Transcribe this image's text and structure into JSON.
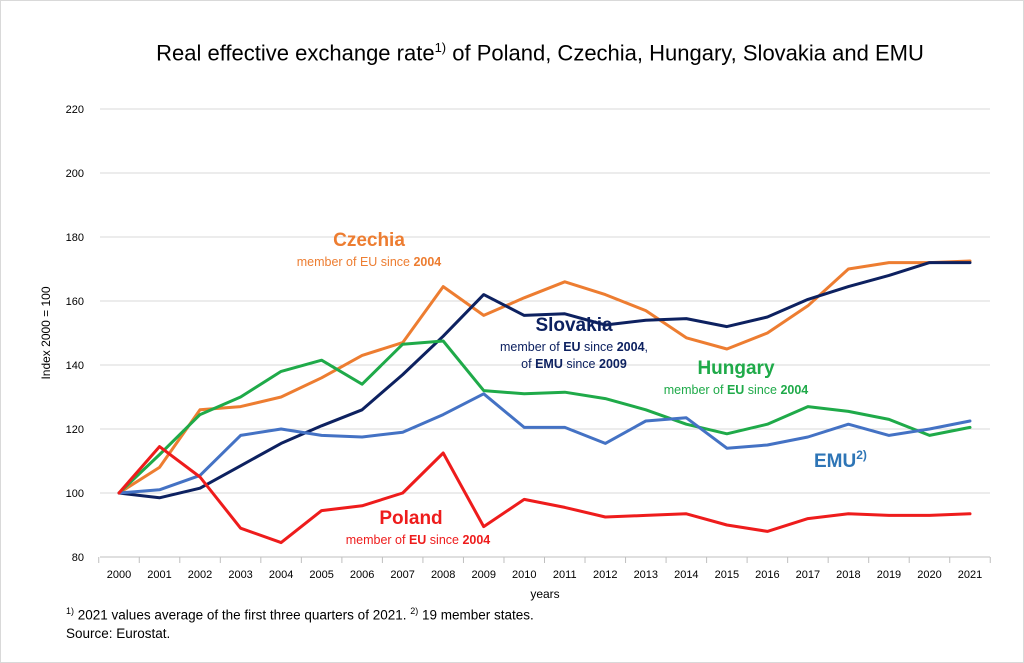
{
  "title": {
    "main": "Real effective exchange rate",
    "sup": "1)",
    "rest": " of Poland, Czechia, Hungary, Slovakia and EMU"
  },
  "footnotes": {
    "line1_sup1": "1)",
    "line1_text1": " 2021 values average of the first three quarters of 2021. ",
    "line1_sup2": "2)",
    "line1_text2": " 19 member states.",
    "line2": "Source: Eurostat."
  },
  "chart_data": {
    "type": "line",
    "title": "Real effective exchange rate 1) of Poland, Czechia, Hungary, Slovakia and EMU",
    "xlabel": "years",
    "ylabel": "Index 2000 = 100",
    "ylim": [
      80,
      220
    ],
    "yticks": [
      80,
      100,
      120,
      140,
      160,
      180,
      200,
      220
    ],
    "grid": true,
    "x": [
      "2000",
      "2001",
      "2002",
      "2003",
      "2004",
      "2005",
      "2006",
      "2007",
      "2008",
      "2009",
      "2010",
      "2011",
      "2012",
      "2013",
      "2014",
      "2015",
      "2016",
      "2017",
      "2018",
      "2019",
      "2020",
      "2021"
    ],
    "series": [
      {
        "name": "Czechia",
        "color": "#ed7d31",
        "values": [
          100,
          108,
          126,
          127,
          130,
          136,
          143,
          147,
          164.5,
          155.5,
          161,
          166,
          162,
          157,
          148.5,
          145,
          150,
          158.5,
          170,
          172,
          172,
          172.5
        ]
      },
      {
        "name": "Slovakia",
        "color": "#0d2160",
        "values": [
          100,
          98.5,
          101.5,
          108.5,
          115.5,
          121,
          126,
          137,
          149,
          162,
          155.5,
          156,
          152.5,
          154,
          154.5,
          152,
          155,
          160.5,
          164.5,
          168,
          172,
          172
        ]
      },
      {
        "name": "Hungary",
        "color": "#1faa49",
        "values": [
          100,
          112,
          124.5,
          130,
          138,
          141.5,
          134,
          146.5,
          147.5,
          132,
          131,
          131.5,
          129.5,
          126,
          121.5,
          118.5,
          121.5,
          127,
          125.5,
          123,
          118,
          120.5
        ]
      },
      {
        "name": "EMU",
        "color": "#4472c4",
        "values": [
          100,
          101,
          105.5,
          118,
          120,
          118,
          117.5,
          119,
          124.5,
          131,
          120.5,
          120.5,
          115.5,
          122.5,
          123.5,
          114,
          115,
          117.5,
          121.5,
          118,
          120,
          122.5
        ]
      },
      {
        "name": "Poland",
        "color": "#ee1c1c",
        "values": [
          100,
          114.5,
          105,
          89,
          84.5,
          94.5,
          96,
          100,
          112.5,
          89.5,
          98,
          95.5,
          92.5,
          93,
          93.5,
          90,
          88,
          92,
          93.5,
          93,
          93,
          93.5
        ]
      }
    ],
    "annotations": [
      {
        "name": "Czechia",
        "label": "Czechia",
        "sub1_a": "member of EU since ",
        "sub1_b": "2004",
        "color": "#ed7d31"
      },
      {
        "name": "Slovakia",
        "label": "Slovakia",
        "sub1_a": "member of ",
        "sub1_b": "EU",
        "sub1_c": " since ",
        "sub1_d": "2004",
        "sub1_e": ",",
        "sub2_a": "of ",
        "sub2_b": "EMU",
        "sub2_c": " since ",
        "sub2_d": "2009",
        "color": "#0d2160"
      },
      {
        "name": "Hungary",
        "label": "Hungary",
        "sub1_a": "member of ",
        "sub1_b": "EU",
        "sub1_c": " since ",
        "sub1_d": "2004",
        "color": "#1faa49"
      },
      {
        "name": "EMU",
        "label": "EMU",
        "sup": "2)",
        "color": "#2e75b6"
      },
      {
        "name": "Poland",
        "label": "Poland",
        "sub1_a": "member of ",
        "sub1_b": "EU",
        "sub1_c": " since ",
        "sub1_d": "2004",
        "color": "#ee1c1c"
      }
    ]
  }
}
